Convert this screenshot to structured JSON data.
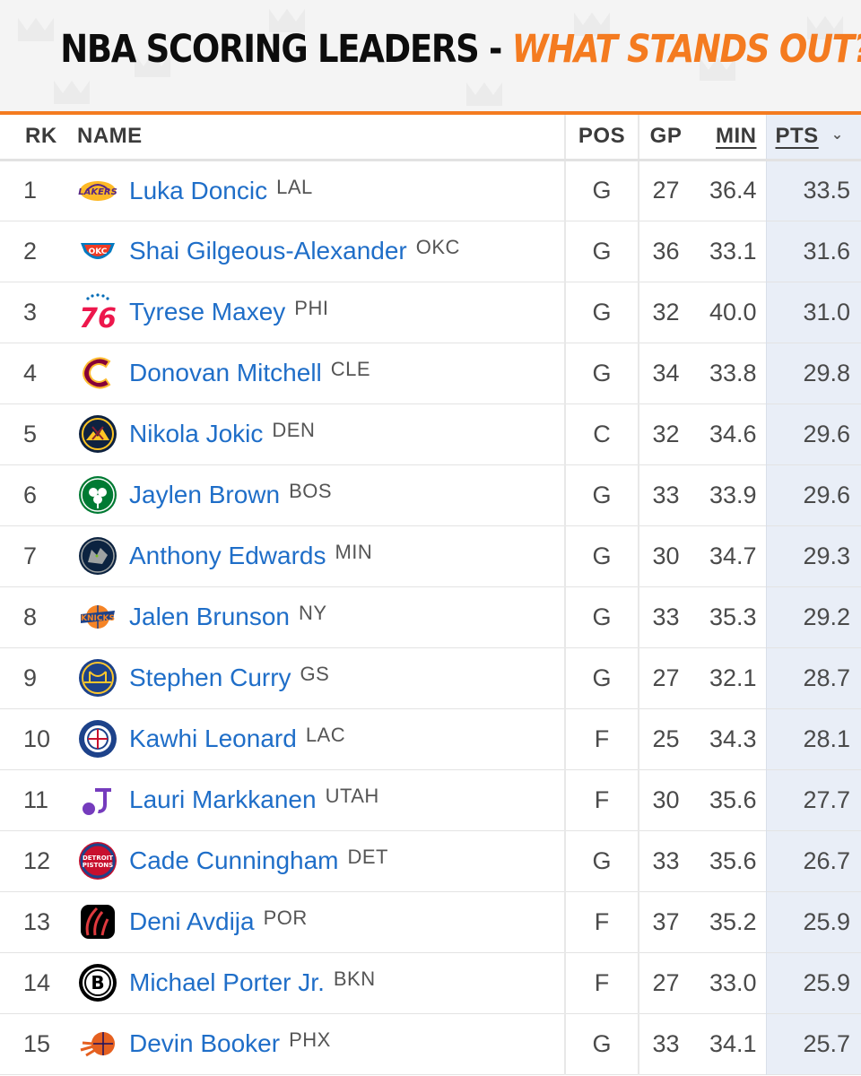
{
  "banner": {
    "title_part1": "NBA SCORING LEADERS - ",
    "title_part2": "WHAT STANDS OUT?!",
    "accent_color": "#f47b20"
  },
  "table": {
    "headers": {
      "rk": "RK",
      "name": "NAME",
      "pos": "POS",
      "gp": "GP",
      "min": "MIN",
      "pts": "PTS"
    },
    "sorted_by": "PTS",
    "sort_direction": "descending",
    "rows": [
      {
        "rk": "1",
        "player": "Luka Doncic",
        "team": "LAL",
        "logo": "lakers-logo",
        "pos": "G",
        "gp": "27",
        "min": "36.4",
        "pts": "33.5"
      },
      {
        "rk": "2",
        "player": "Shai Gilgeous-Alexander",
        "team": "OKC",
        "logo": "thunder-logo",
        "pos": "G",
        "gp": "36",
        "min": "33.1",
        "pts": "31.6"
      },
      {
        "rk": "3",
        "player": "Tyrese Maxey",
        "team": "PHI",
        "logo": "76ers-logo",
        "pos": "G",
        "gp": "32",
        "min": "40.0",
        "pts": "31.0"
      },
      {
        "rk": "4",
        "player": "Donovan Mitchell",
        "team": "CLE",
        "logo": "cavaliers-logo",
        "pos": "G",
        "gp": "34",
        "min": "33.8",
        "pts": "29.8"
      },
      {
        "rk": "5",
        "player": "Nikola Jokic",
        "team": "DEN",
        "logo": "nuggets-logo",
        "pos": "C",
        "gp": "32",
        "min": "34.6",
        "pts": "29.6"
      },
      {
        "rk": "6",
        "player": "Jaylen Brown",
        "team": "BOS",
        "logo": "celtics-logo",
        "pos": "G",
        "gp": "33",
        "min": "33.9",
        "pts": "29.6"
      },
      {
        "rk": "7",
        "player": "Anthony Edwards",
        "team": "MIN",
        "logo": "timberwolves-logo",
        "pos": "G",
        "gp": "30",
        "min": "34.7",
        "pts": "29.3"
      },
      {
        "rk": "8",
        "player": "Jalen Brunson",
        "team": "NY",
        "logo": "knicks-logo",
        "pos": "G",
        "gp": "33",
        "min": "35.3",
        "pts": "29.2"
      },
      {
        "rk": "9",
        "player": "Stephen Curry",
        "team": "GS",
        "logo": "warriors-logo",
        "pos": "G",
        "gp": "27",
        "min": "32.1",
        "pts": "28.7"
      },
      {
        "rk": "10",
        "player": "Kawhi Leonard",
        "team": "LAC",
        "logo": "clippers-logo",
        "pos": "F",
        "gp": "25",
        "min": "34.3",
        "pts": "28.1"
      },
      {
        "rk": "11",
        "player": "Lauri Markkanen",
        "team": "UTAH",
        "logo": "jazz-logo",
        "pos": "F",
        "gp": "30",
        "min": "35.6",
        "pts": "27.7"
      },
      {
        "rk": "12",
        "player": "Cade Cunningham",
        "team": "DET",
        "logo": "pistons-logo",
        "pos": "G",
        "gp": "33",
        "min": "35.6",
        "pts": "26.7"
      },
      {
        "rk": "13",
        "player": "Deni Avdija",
        "team": "POR",
        "logo": "trail-blazers-logo",
        "pos": "F",
        "gp": "37",
        "min": "35.2",
        "pts": "25.9"
      },
      {
        "rk": "14",
        "player": "Michael Porter Jr.",
        "team": "BKN",
        "logo": "nets-logo",
        "pos": "F",
        "gp": "27",
        "min": "33.0",
        "pts": "25.9"
      },
      {
        "rk": "15",
        "player": "Devin Booker",
        "team": "PHX",
        "logo": "suns-logo",
        "pos": "G",
        "gp": "33",
        "min": "34.1",
        "pts": "25.7"
      }
    ]
  }
}
